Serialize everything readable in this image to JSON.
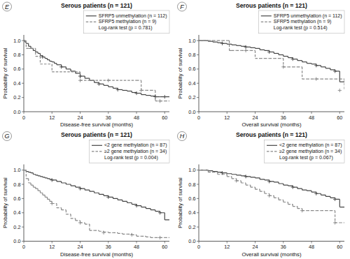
{
  "chart_data": [
    {
      "type": "step",
      "title": "Serous patients (n = 121)",
      "xlabel": "Disease-free survival (months)",
      "ylabel": "Probability of survival",
      "annotations": [
        "E",
        "Log-rank test (p = 0.781)"
      ],
      "xlim": [
        0,
        62
      ],
      "xticks": [
        0,
        12,
        24,
        36,
        48,
        60
      ],
      "ylim": [
        0.0,
        1.08
      ],
      "yticks": [
        {
          "value": 0.0,
          "label": "0.0"
        },
        0.2,
        0.4,
        0.6,
        0.8,
        {
          "value": 1.0,
          "label": "1.0"
        }
      ],
      "grid": false,
      "legend": "top",
      "series": [
        {
          "name": "SFRP5 unmethylation (n = 112)",
          "type": "step",
          "color": "#444444",
          "line_style": "solid",
          "x": [
            0,
            0.5,
            1,
            2,
            3,
            4,
            5,
            6,
            7,
            8,
            9,
            10,
            11,
            12,
            13,
            14,
            16,
            18,
            20,
            22,
            24,
            26,
            28,
            30,
            32,
            34,
            36,
            38,
            40,
            42,
            44,
            46,
            48,
            50,
            52,
            54,
            56,
            58,
            60,
            62
          ],
          "values": [
            1.0,
            0.98,
            0.96,
            0.92,
            0.89,
            0.86,
            0.84,
            0.82,
            0.79,
            0.77,
            0.75,
            0.73,
            0.71,
            0.7,
            0.68,
            0.66,
            0.63,
            0.6,
            0.57,
            0.54,
            0.5,
            0.47,
            0.44,
            0.41,
            0.39,
            0.37,
            0.35,
            0.33,
            0.31,
            0.3,
            0.29,
            0.27,
            0.26,
            0.24,
            0.23,
            0.22,
            0.21,
            0.21,
            0.21,
            0.21
          ]
        },
        {
          "name": "SFRP5 methylation (n = 9)",
          "type": "step",
          "color": "#888888",
          "line_style": "dashed",
          "x": [
            0,
            1,
            2,
            3,
            5,
            7,
            12,
            24,
            36,
            48,
            50,
            52,
            54,
            56,
            58,
            60,
            62
          ],
          "values": [
            1.0,
            0.89,
            0.89,
            0.89,
            0.78,
            0.67,
            0.56,
            0.44,
            0.44,
            0.44,
            0.3,
            0.3,
            0.3,
            0.15,
            0.15,
            0.15,
            0.15
          ]
        },
        {
          "type": "scatter",
          "marker": "plus",
          "color": "#444444",
          "x": [
            8,
            16,
            24,
            32,
            40,
            48,
            56,
            60
          ],
          "values": [
            0.77,
            0.63,
            0.5,
            0.39,
            0.31,
            0.26,
            0.21,
            0.21
          ]
        },
        {
          "type": "scatter",
          "marker": "plus",
          "color": "#888888",
          "x": [
            24,
            36,
            50,
            58
          ],
          "values": [
            0.44,
            0.44,
            0.3,
            0.15
          ]
        }
      ]
    },
    {
      "type": "step",
      "title": "Serous patients (n = 121)",
      "xlabel": "Overall survival (months)",
      "ylabel": "Probability of survival",
      "annotations": [
        "F",
        "Log-rank test (p = 0.514)"
      ],
      "xlim": [
        0,
        62
      ],
      "xticks": [
        0,
        12,
        24,
        36,
        48,
        60
      ],
      "ylim": [
        0.0,
        1.08
      ],
      "yticks": [
        {
          "value": 0.0,
          "label": "0.0"
        },
        0.2,
        0.4,
        0.6,
        0.8,
        {
          "value": 1.0,
          "label": "1.0"
        }
      ],
      "grid": false,
      "legend": "top",
      "series": [
        {
          "name": "SFRP5 unmethylation (n = 112)",
          "type": "step",
          "color": "#444444",
          "line_style": "solid",
          "x": [
            0,
            2,
            4,
            6,
            8,
            10,
            12,
            14,
            16,
            18,
            20,
            22,
            24,
            26,
            28,
            30,
            32,
            34,
            36,
            38,
            40,
            42,
            44,
            46,
            48,
            50,
            52,
            54,
            56,
            58,
            60,
            62
          ],
          "values": [
            1.0,
            1.0,
            0.99,
            0.98,
            0.97,
            0.96,
            0.95,
            0.94,
            0.93,
            0.92,
            0.91,
            0.9,
            0.89,
            0.87,
            0.86,
            0.84,
            0.82,
            0.8,
            0.78,
            0.76,
            0.74,
            0.72,
            0.7,
            0.68,
            0.67,
            0.65,
            0.63,
            0.61,
            0.59,
            0.57,
            0.42,
            0.42
          ]
        },
        {
          "name": "SFRP5 methylation (n = 9)",
          "type": "step",
          "color": "#888888",
          "line_style": "dashed",
          "x": [
            0,
            2,
            4,
            6,
            8,
            10,
            12,
            13,
            14,
            16,
            18,
            20,
            22,
            24,
            26,
            28,
            30,
            32,
            34,
            36,
            38,
            40,
            42,
            44,
            46,
            48,
            50,
            52,
            54,
            56,
            58,
            60,
            62
          ],
          "values": [
            1.0,
            1.0,
            1.0,
            1.0,
            1.0,
            1.0,
            1.0,
            0.86,
            0.86,
            0.86,
            0.86,
            0.86,
            0.86,
            0.75,
            0.75,
            0.75,
            0.75,
            0.75,
            0.75,
            0.63,
            0.63,
            0.63,
            0.63,
            0.46,
            0.46,
            0.46,
            0.46,
            0.46,
            0.46,
            0.46,
            0.46,
            0.46,
            0.3
          ]
        },
        {
          "type": "scatter",
          "marker": "plus",
          "color": "#444444",
          "x": [
            10,
            20,
            30,
            40,
            50,
            58
          ],
          "values": [
            0.96,
            0.91,
            0.84,
            0.74,
            0.65,
            0.57
          ]
        },
        {
          "type": "scatter",
          "marker": "plus",
          "color": "#888888",
          "x": [
            20,
            36,
            50,
            60
          ],
          "values": [
            0.86,
            0.63,
            0.46,
            0.3
          ]
        }
      ]
    },
    {
      "type": "step",
      "title": "Serous patients (n = 121)",
      "xlabel": "Disease-free survival (months)",
      "ylabel": "Probability of survival",
      "annotations": [
        "G",
        "Log-rank test (p = 0.004)"
      ],
      "xlim": [
        0,
        62
      ],
      "xticks": [
        0,
        12,
        24,
        36,
        48,
        60
      ],
      "ylim": [
        0.0,
        1.08
      ],
      "yticks": [
        {
          "value": 0.0,
          "label": "0.0"
        },
        0.2,
        0.4,
        0.6,
        0.8,
        {
          "value": 1.0,
          "label": "1.0"
        }
      ],
      "grid": false,
      "legend": "top",
      "series": [
        {
          "name": "<2 gene methylation (n = 87)",
          "type": "step",
          "color": "#444444",
          "line_style": "solid",
          "x": [
            0,
            1,
            2,
            3,
            4,
            5,
            6,
            7,
            8,
            9,
            10,
            11,
            12,
            14,
            16,
            18,
            20,
            22,
            24,
            26,
            28,
            30,
            32,
            34,
            36,
            38,
            40,
            42,
            44,
            46,
            48,
            50,
            52,
            54,
            56,
            58,
            60,
            62
          ],
          "values": [
            1.0,
            0.98,
            0.97,
            0.96,
            0.94,
            0.93,
            0.92,
            0.91,
            0.9,
            0.89,
            0.88,
            0.87,
            0.86,
            0.84,
            0.82,
            0.8,
            0.78,
            0.76,
            0.74,
            0.72,
            0.7,
            0.68,
            0.66,
            0.64,
            0.62,
            0.6,
            0.58,
            0.56,
            0.54,
            0.52,
            0.5,
            0.48,
            0.46,
            0.44,
            0.42,
            0.4,
            0.3,
            0.3
          ]
        },
        {
          "name": "≥2 gene methylation (n = 34)",
          "type": "step",
          "color": "#888888",
          "line_style": "dashed",
          "x": [
            0,
            1,
            2,
            3,
            4,
            5,
            6,
            7,
            8,
            9,
            10,
            11,
            12,
            14,
            16,
            18,
            20,
            22,
            24,
            26,
            28,
            30,
            32,
            34,
            36,
            38,
            40,
            42,
            44,
            46,
            48,
            50,
            52,
            54,
            56,
            58,
            60,
            62
          ],
          "values": [
            1.0,
            0.88,
            0.82,
            0.79,
            0.76,
            0.74,
            0.71,
            0.68,
            0.65,
            0.62,
            0.59,
            0.56,
            0.53,
            0.47,
            0.44,
            0.38,
            0.32,
            0.29,
            0.26,
            0.24,
            0.15,
            0.15,
            0.14,
            0.13,
            0.12,
            0.12,
            0.11,
            0.1,
            0.1,
            0.09,
            0.07,
            0.07,
            0.06,
            0.05,
            0.05,
            0.05,
            0.05,
            0.05
          ]
        },
        {
          "type": "scatter",
          "marker": "plus",
          "color": "#444444",
          "x": [
            12,
            24,
            36,
            48,
            58
          ],
          "values": [
            0.86,
            0.74,
            0.62,
            0.5,
            0.4
          ]
        },
        {
          "type": "scatter",
          "marker": "plus",
          "color": "#888888",
          "x": [
            12,
            24,
            34,
            46,
            58
          ],
          "values": [
            0.53,
            0.26,
            0.12,
            0.09,
            0.05
          ]
        }
      ]
    },
    {
      "type": "step",
      "title": "Serous patients (n = 121)",
      "xlabel": "Overall survival (months)",
      "ylabel": "Probability of survival",
      "annotations": [
        "H",
        "Log-rank test (p = 0.067)"
      ],
      "xlim": [
        0,
        62
      ],
      "xticks": [
        0,
        12,
        24,
        36,
        48,
        60
      ],
      "ylim": [
        0.0,
        1.08
      ],
      "yticks": [
        {
          "value": 0.0,
          "label": "0.0"
        },
        0.2,
        0.4,
        0.6,
        0.8,
        {
          "value": 1.0,
          "label": "1.0"
        }
      ],
      "grid": false,
      "legend": "top",
      "series": [
        {
          "name": "<2 gene methylation (n = 87)",
          "type": "step",
          "color": "#444444",
          "line_style": "solid",
          "x": [
            0,
            2,
            4,
            6,
            8,
            10,
            12,
            14,
            16,
            18,
            20,
            22,
            24,
            26,
            28,
            30,
            32,
            34,
            36,
            38,
            40,
            42,
            44,
            46,
            48,
            50,
            52,
            54,
            56,
            58,
            60,
            62
          ],
          "values": [
            1.0,
            1.0,
            0.99,
            0.98,
            0.97,
            0.96,
            0.95,
            0.94,
            0.93,
            0.92,
            0.91,
            0.9,
            0.89,
            0.87,
            0.86,
            0.84,
            0.83,
            0.81,
            0.79,
            0.78,
            0.76,
            0.74,
            0.72,
            0.71,
            0.69,
            0.67,
            0.65,
            0.63,
            0.61,
            0.59,
            0.48,
            0.48
          ]
        },
        {
          "name": "≥2 gene methylation (n = 34)",
          "type": "step",
          "color": "#888888",
          "line_style": "dashed",
          "x": [
            0,
            2,
            4,
            6,
            8,
            10,
            12,
            14,
            16,
            18,
            20,
            22,
            24,
            26,
            28,
            30,
            32,
            34,
            36,
            38,
            40,
            42,
            44,
            46,
            48,
            50,
            52,
            54,
            56,
            58,
            60,
            62
          ],
          "values": [
            1.0,
            1.0,
            0.97,
            0.97,
            0.94,
            0.94,
            0.91,
            0.88,
            0.85,
            0.82,
            0.79,
            0.76,
            0.73,
            0.7,
            0.67,
            0.64,
            0.61,
            0.58,
            0.55,
            0.52,
            0.49,
            0.46,
            0.43,
            0.43,
            0.43,
            0.43,
            0.43,
            0.43,
            0.43,
            0.26,
            0.26,
            0.26
          ]
        },
        {
          "type": "scatter",
          "marker": "plus",
          "color": "#444444",
          "x": [
            10,
            20,
            30,
            40,
            50,
            58
          ],
          "values": [
            0.96,
            0.91,
            0.84,
            0.76,
            0.67,
            0.59
          ]
        },
        {
          "type": "scatter",
          "marker": "plus",
          "color": "#888888",
          "x": [
            16,
            30,
            44,
            58
          ],
          "values": [
            0.85,
            0.64,
            0.43,
            0.26
          ]
        }
      ]
    }
  ]
}
